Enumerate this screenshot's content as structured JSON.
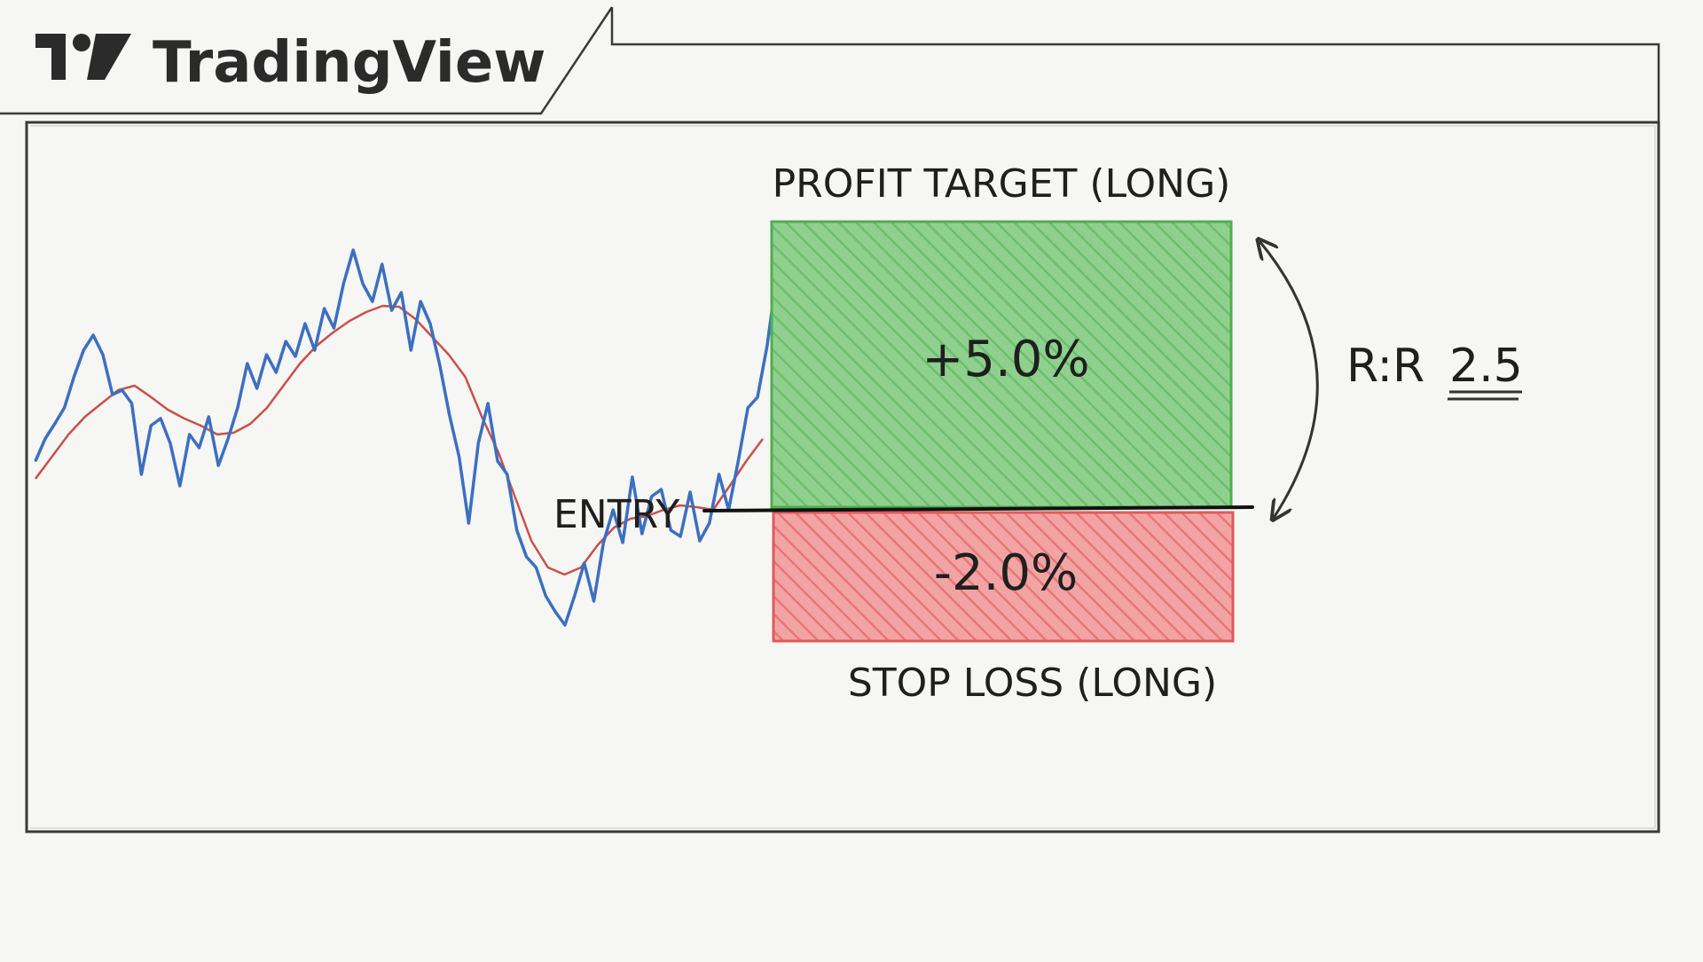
{
  "brand": {
    "name": "TradingView",
    "logo_icon": "tradingview-logo-icon"
  },
  "annotations": {
    "profit_target_label": "PROFIT TARGET (LONG)",
    "stop_loss_label": "STOP LOSS (LONG)",
    "entry_label": "ENTRY",
    "profit_pct": "+5.0%",
    "loss_pct": "-2.0%",
    "rr_prefix": "R:R",
    "rr_value": "2.5"
  },
  "colors": {
    "background": "#f6f6f4",
    "frame": "#3a3a3a",
    "price_line": "#3c6fc0",
    "moving_average": "#c9504a",
    "profit_fill": "#5cb85c",
    "loss_fill": "#e05a5a",
    "text": "#1f1f1f"
  },
  "chart_data": {
    "type": "line",
    "title": "",
    "xlabel": "",
    "ylabel": "",
    "series": [
      {
        "values": [
          520,
          495,
          478,
          460,
          425,
          395,
          378,
          400,
          445,
          440,
          455,
          535,
          480,
          472,
          500,
          548,
          490,
          505,
          470,
          525,
          495,
          460,
          410,
          438,
          400,
          420,
          385,
          402,
          365,
          395,
          348,
          370,
          320,
          282,
          320,
          340,
          298,
          350,
          330,
          395,
          340,
          365,
          412,
          468,
          515,
          590,
          500,
          455,
          520,
          535,
          598,
          628,
          640,
          672,
          690,
          705,
          672,
          635,
          678,
          612,
          575,
          612,
          538,
          602,
          560,
          552,
          598,
          605,
          555,
          610,
          590,
          535,
          575,
          520,
          460,
          448,
          390,
          310,
          360,
          320,
          355,
          300,
          282
        ]
      },
      {
        "values": [
          540,
          515,
          490,
          470,
          455,
          440,
          435,
          448,
          462,
          472,
          480,
          490,
          488,
          478,
          460,
          435,
          410,
          390,
          375,
          362,
          352,
          345,
          346,
          360,
          380,
          400,
          425,
          470,
          510,
          560,
          610,
          640,
          648,
          640,
          615,
          595,
          585,
          582,
          575,
          570,
          572,
          575,
          548,
          520,
          495
        ]
      }
    ]
  }
}
